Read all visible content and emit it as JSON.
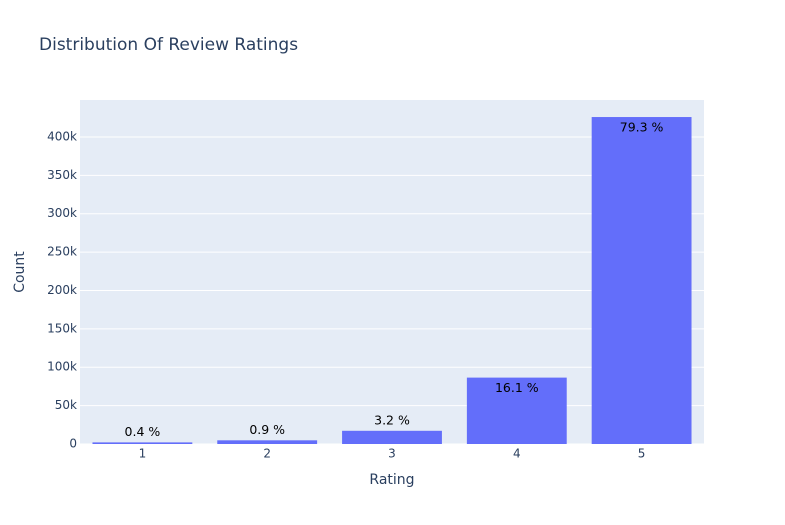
{
  "chart_data": {
    "type": "bar",
    "title": "Distribution Of Review Ratings",
    "x_label": "Rating",
    "y_label": "Count",
    "categories": [
      "1",
      "2",
      "3",
      "4",
      "5"
    ],
    "values": [
      2100,
      4800,
      17200,
      86500,
      426000
    ],
    "bar_texts": [
      "0.4 %",
      "0.9 %",
      "3.2 %",
      "16.1 %",
      "79.3 %"
    ],
    "color": "#636efa",
    "ylim": [
      0,
      448200
    ],
    "yticks": [
      0,
      {
        "value": 50000,
        "label": "50k"
      },
      {
        "value": 100000,
        "label": "100k"
      },
      {
        "value": 150000,
        "label": "150k"
      },
      {
        "value": 200000,
        "label": "200k"
      },
      {
        "value": 250000,
        "label": "250k"
      },
      {
        "value": 300000,
        "label": "300k"
      },
      {
        "value": 350000,
        "label": "350k"
      },
      {
        "value": 400000,
        "label": "400k"
      }
    ],
    "grid": true
  }
}
